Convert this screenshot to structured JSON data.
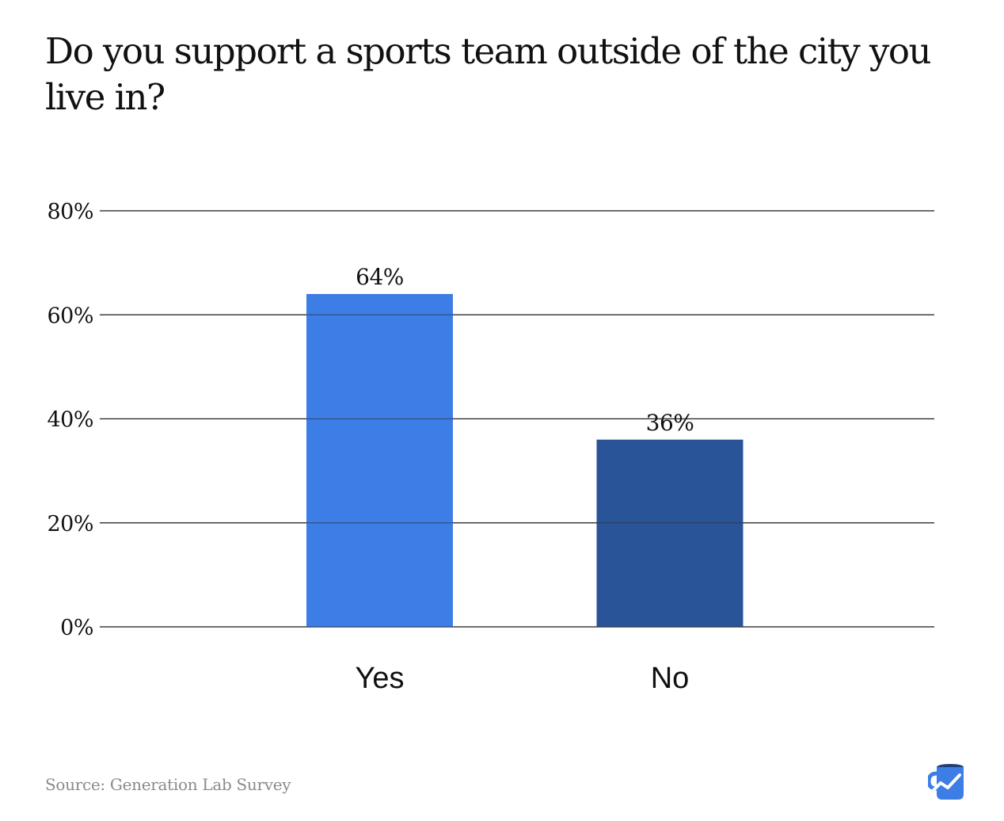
{
  "title": "Do you support a sports team outside of the city you live in?",
  "source": "Source: Generation Lab Survey",
  "logo_icon": "mug-with-chart-line-logo",
  "colors": {
    "yes": "#3d7de6",
    "no": "#2a5498",
    "gridline": "#2b2b2b",
    "text": "#111111",
    "source_text": "#8a8a8a"
  },
  "chart_data": {
    "type": "bar",
    "categories": [
      "Yes",
      "No"
    ],
    "values": [
      64,
      36
    ],
    "value_labels": [
      "64%",
      "36%"
    ],
    "ylim": [
      0,
      80
    ],
    "yticks": [
      0,
      20,
      40,
      60,
      80
    ],
    "ytick_labels": [
      "0%",
      "20%",
      "40%",
      "60%",
      "80%"
    ],
    "grid": true,
    "legend": "none",
    "bar_colors": [
      "#3d7de6",
      "#2a5498"
    ]
  }
}
